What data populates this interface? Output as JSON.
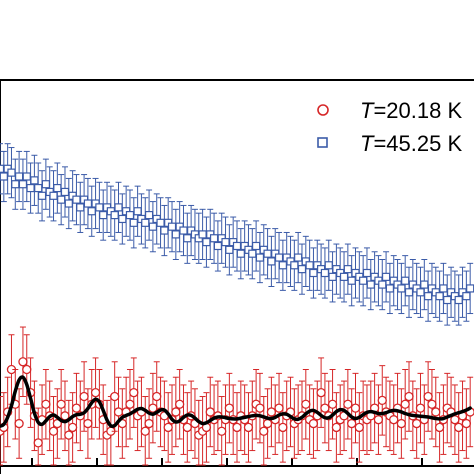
{
  "chart_data": {
    "type": "scatter",
    "legend_position": "top-right",
    "grid": false,
    "x_range": [
      0,
      62
    ],
    "y_range": [
      0,
      10
    ],
    "series": [
      {
        "name_prefix": "T",
        "name": "=20.18 K",
        "marker": "open-circle",
        "color": "#d62728",
        "x": [
          0.0,
          0.5,
          1.0,
          1.5,
          2.0,
          2.5,
          3.0,
          3.5,
          4.0,
          4.5,
          5.0,
          5.5,
          6.0,
          6.5,
          7.0,
          7.5,
          8.0,
          8.5,
          9.0,
          9.5,
          10.0,
          10.5,
          11.0,
          11.5,
          12.0,
          12.5,
          13.0,
          13.5,
          14.0,
          14.5,
          15.0,
          15.5,
          16.0,
          16.5,
          17.0,
          17.5,
          18.0,
          18.5,
          19.0,
          19.5,
          20.0,
          20.5,
          21.0,
          21.5,
          22.0,
          22.5,
          23.0,
          23.5,
          24.0,
          24.5,
          25.0,
          25.5,
          26.0,
          26.5,
          27.0,
          27.5,
          28.0,
          28.5,
          29.0,
          29.5,
          30.0,
          30.5,
          31.0,
          31.5,
          32.0,
          32.5,
          33.0,
          33.5,
          34.0,
          34.5,
          35.0,
          35.5,
          36.0,
          36.5,
          37.0,
          37.5,
          38.0,
          38.5,
          39.0,
          39.5,
          40.0,
          40.5,
          41.0,
          41.5,
          42.0,
          42.5,
          43.0,
          43.5,
          44.0,
          44.5,
          45.0,
          45.5,
          46.0,
          46.5,
          47.0,
          47.5,
          48.0,
          48.5,
          49.0,
          49.5,
          50.0,
          50.5,
          51.0,
          51.5,
          52.0,
          52.5,
          53.0,
          53.5,
          54.0,
          54.5,
          55.0,
          55.5,
          56.0,
          56.5,
          57.0,
          57.5,
          58.0,
          58.5,
          59.0,
          59.5,
          60.0,
          60.5,
          61.0,
          61.5
        ],
        "y": [
          0.9,
          1.0,
          1.4,
          2.5,
          1.6,
          1.1,
          2.7,
          2.5,
          1.9,
          1.3,
          0.6,
          1.2,
          1.6,
          1.3,
          0.9,
          1.1,
          1.6,
          1.3,
          0.8,
          1.0,
          1.5,
          1.3,
          1.8,
          1.1,
          1.6,
          1.9,
          1.6,
          1.2,
          0.8,
          0.9,
          1.8,
          1.4,
          1.1,
          1.4,
          1.6,
          1.9,
          1.3,
          1.4,
          0.9,
          1.1,
          1.5,
          1.8,
          1.4,
          1.3,
          1.0,
          1.2,
          1.4,
          1.6,
          1.2,
          1.0,
          1.3,
          1.1,
          0.8,
          0.9,
          1.0,
          1.4,
          1.2,
          1.3,
          0.9,
          1.2,
          1.5,
          1.2,
          1.0,
          1.3,
          1.2,
          1.0,
          1.3,
          1.6,
          1.5,
          0.9,
          1.1,
          1.4,
          1.2,
          1.5,
          1.0,
          1.3,
          1.4,
          1.1,
          1.2,
          1.3,
          1.6,
          1.2,
          1.1,
          1.3,
          1.9,
          1.5,
          1.3,
          1.6,
          1.0,
          1.2,
          1.3,
          1.6,
          1.1,
          1.5,
          1.0,
          1.3,
          1.2,
          1.3,
          1.5,
          1.2,
          1.7,
          1.4,
          1.3,
          1.2,
          1.5,
          1.1,
          1.6,
          1.8,
          1.3,
          1.1,
          1.5,
          1.2,
          1.8,
          1.6,
          1.4,
          1.0,
          1.2,
          1.5,
          1.4,
          1.2,
          1.0,
          1.3,
          1.1,
          1.4
        ],
        "error": 0.9
      },
      {
        "name_prefix": "T",
        "name": "=45.25 K",
        "marker": "open-square",
        "color": "#3b5ba8",
        "x": [
          0.0,
          0.5,
          1.0,
          1.5,
          2.0,
          2.5,
          3.0,
          3.5,
          4.0,
          4.5,
          5.0,
          5.5,
          6.0,
          6.5,
          7.0,
          7.5,
          8.0,
          8.5,
          9.0,
          9.5,
          10.0,
          10.5,
          11.0,
          11.5,
          12.0,
          12.5,
          13.0,
          13.5,
          14.0,
          14.5,
          15.0,
          15.5,
          16.0,
          16.5,
          17.0,
          17.5,
          18.0,
          18.5,
          19.0,
          19.5,
          20.0,
          20.5,
          21.0,
          21.5,
          22.0,
          22.5,
          23.0,
          23.5,
          24.0,
          24.5,
          25.0,
          25.5,
          26.0,
          26.5,
          27.0,
          27.5,
          28.0,
          28.5,
          29.0,
          29.5,
          30.0,
          30.5,
          31.0,
          31.5,
          32.0,
          32.5,
          33.0,
          33.5,
          34.0,
          34.5,
          35.0,
          35.5,
          36.0,
          36.5,
          37.0,
          37.5,
          38.0,
          38.5,
          39.0,
          39.5,
          40.0,
          40.5,
          41.0,
          41.5,
          42.0,
          42.5,
          43.0,
          43.5,
          44.0,
          44.5,
          45.0,
          45.5,
          46.0,
          46.5,
          47.0,
          47.5,
          48.0,
          48.5,
          49.0,
          49.5,
          50.0,
          50.5,
          51.0,
          51.5,
          52.0,
          52.5,
          53.0,
          53.5,
          54.0,
          54.5,
          55.0,
          55.5,
          56.0,
          56.5,
          57.0,
          57.5,
          58.0,
          58.5,
          59.0,
          59.5,
          60.0,
          60.5,
          61.0,
          61.5
        ],
        "y": [
          7.7,
          7.5,
          7.7,
          7.6,
          7.3,
          7.5,
          7.3,
          7.5,
          7.2,
          7.4,
          7.2,
          7.0,
          7.3,
          7.1,
          7.0,
          7.2,
          6.9,
          7.1,
          6.8,
          7.0,
          6.9,
          6.7,
          6.9,
          6.8,
          6.6,
          6.8,
          6.7,
          6.5,
          6.7,
          6.6,
          6.5,
          6.7,
          6.4,
          6.6,
          6.5,
          6.3,
          6.6,
          6.4,
          6.3,
          6.5,
          6.2,
          6.4,
          6.3,
          6.1,
          6.3,
          6.2,
          6.0,
          6.2,
          6.1,
          5.9,
          6.1,
          6.0,
          5.9,
          6.0,
          5.8,
          6.0,
          5.9,
          5.7,
          5.9,
          5.8,
          5.6,
          5.8,
          5.7,
          5.5,
          5.7,
          5.6,
          5.5,
          5.7,
          5.4,
          5.6,
          5.5,
          5.3,
          5.5,
          5.4,
          5.2,
          5.4,
          5.3,
          5.2,
          5.4,
          5.1,
          5.3,
          5.2,
          5.0,
          5.2,
          5.1,
          5.0,
          5.2,
          4.9,
          5.1,
          5.0,
          4.9,
          5.1,
          4.8,
          5.0,
          4.9,
          4.8,
          5.0,
          4.7,
          4.9,
          4.8,
          4.7,
          4.9,
          4.6,
          4.8,
          4.7,
          4.6,
          4.8,
          4.5,
          4.7,
          4.6,
          4.5,
          4.7,
          4.4,
          4.6,
          4.5,
          4.4,
          4.6,
          4.3,
          4.5,
          4.4,
          4.3,
          4.5,
          4.4,
          4.6
        ],
        "error": 0.65
      }
    ],
    "fit_line": {
      "color": "#000000",
      "x": [
        0.0,
        0.5,
        1.0,
        1.5,
        2.0,
        2.5,
        3.0,
        3.5,
        4.0,
        4.5,
        5.0,
        5.5,
        6.0,
        6.5,
        7.0,
        7.5,
        8.0,
        8.5,
        9.0,
        9.5,
        10.0,
        10.5,
        11.0,
        11.5,
        12.0,
        12.5,
        13.0,
        13.5,
        14.0,
        14.5,
        15.0,
        15.5,
        16.0,
        16.5,
        17.0,
        17.5,
        18.0,
        18.5,
        19.0,
        19.5,
        20.0,
        20.5,
        21.0,
        21.5,
        22.0,
        22.5,
        23.0,
        23.5,
        24.0,
        24.5,
        25.0,
        25.5,
        26.0,
        26.5,
        27.0,
        27.5,
        28.0,
        28.5,
        29.0,
        29.5,
        30.0,
        30.5,
        31.0,
        31.5,
        32.0,
        32.5,
        33.0,
        33.5,
        34.0,
        34.5,
        35.0,
        35.5,
        36.0,
        36.5,
        37.0,
        37.5,
        38.0,
        38.5,
        39.0,
        39.5,
        40.0,
        40.5,
        41.0,
        41.5,
        42.0,
        42.5,
        43.0,
        43.5,
        44.0,
        44.5,
        45.0,
        45.5,
        46.0,
        46.5,
        47.0,
        47.5,
        48.0,
        48.5,
        49.0,
        49.5,
        50.0,
        50.5,
        51.0,
        51.5,
        52.0,
        52.5,
        53.0,
        53.5,
        54.0,
        54.5,
        55.0,
        55.5,
        56.0,
        56.5,
        57.0,
        57.5,
        58.0,
        58.5,
        59.0,
        59.5,
        60.0,
        60.5,
        61.0,
        61.5
      ],
      "y": [
        1.03,
        1.08,
        1.26,
        1.56,
        1.94,
        2.23,
        2.3,
        2.11,
        1.75,
        1.37,
        1.13,
        1.08,
        1.17,
        1.28,
        1.32,
        1.26,
        1.18,
        1.15,
        1.2,
        1.28,
        1.33,
        1.34,
        1.38,
        1.49,
        1.64,
        1.73,
        1.66,
        1.44,
        1.19,
        1.04,
        1.05,
        1.16,
        1.26,
        1.31,
        1.35,
        1.41,
        1.47,
        1.49,
        1.44,
        1.37,
        1.34,
        1.39,
        1.45,
        1.45,
        1.35,
        1.21,
        1.14,
        1.17,
        1.26,
        1.32,
        1.31,
        1.24,
        1.15,
        1.1,
        1.12,
        1.18,
        1.24,
        1.27,
        1.27,
        1.25,
        1.23,
        1.22,
        1.22,
        1.24,
        1.26,
        1.28,
        1.3,
        1.31,
        1.3,
        1.27,
        1.24,
        1.23,
        1.26,
        1.32,
        1.35,
        1.34,
        1.28,
        1.22,
        1.21,
        1.26,
        1.35,
        1.42,
        1.44,
        1.39,
        1.31,
        1.25,
        1.25,
        1.32,
        1.41,
        1.46,
        1.44,
        1.36,
        1.27,
        1.23,
        1.26,
        1.33,
        1.39,
        1.41,
        1.39,
        1.36,
        1.36,
        1.38,
        1.42,
        1.44,
        1.43,
        1.4,
        1.36,
        1.33,
        1.31,
        1.3,
        1.29,
        1.28,
        1.27,
        1.25,
        1.23,
        1.22,
        1.23,
        1.27,
        1.31,
        1.35,
        1.38,
        1.41,
        1.45,
        1.5
      ]
    }
  }
}
